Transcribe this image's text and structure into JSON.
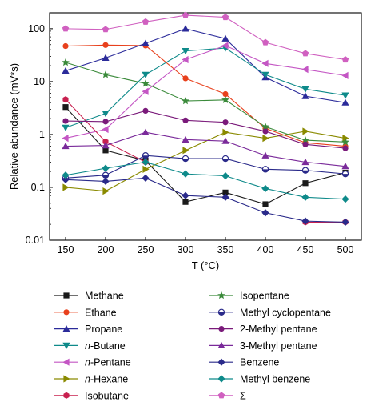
{
  "chart_data": {
    "type": "line",
    "title": "",
    "xlabel": "T (°C)",
    "ylabel": "Relative abundance (mV*s)",
    "x": [
      150,
      200,
      250,
      300,
      350,
      400,
      450,
      500
    ],
    "xlim": [
      130,
      520
    ],
    "ylim": [
      0.01,
      200
    ],
    "yscale": "log",
    "xticks": [
      "150",
      "200",
      "250",
      "300",
      "350",
      "400",
      "450",
      "500"
    ],
    "yticks": [
      "0.01",
      "0.1",
      "1",
      "10",
      "100"
    ],
    "ytick_values": [
      0.01,
      0.1,
      1,
      10,
      100
    ],
    "grid": false,
    "legend_position": "below",
    "series": [
      {
        "name": "Methane",
        "name_prefix": "",
        "name_italic": "",
        "name_suffix": "",
        "color": "#1a1a1a",
        "marker": "square",
        "values": [
          3.3,
          0.5,
          0.32,
          0.053,
          0.08,
          0.048,
          0.12,
          0.19
        ]
      },
      {
        "name": "Ethane",
        "name_prefix": "",
        "name_italic": "",
        "name_suffix": "",
        "color": "#e8401c",
        "marker": "circle",
        "values": [
          47,
          49,
          48,
          11.5,
          5.8,
          1.3,
          0.7,
          0.6
        ]
      },
      {
        "name": "Propane",
        "name_prefix": "",
        "name_italic": "",
        "name_suffix": "",
        "color": "#2b2b9a",
        "marker": "triangle-up",
        "values": [
          16,
          28,
          53,
          100,
          65,
          12,
          5.3,
          4
        ]
      },
      {
        "name": "n-Butane",
        "name_prefix": "",
        "name_italic": "n",
        "name_suffix": "-Butane",
        "color": "#0e8a8a",
        "marker": "triangle-down",
        "values": [
          1.35,
          2.5,
          13.5,
          38,
          43,
          13.5,
          7.2,
          5.5
        ]
      },
      {
        "name": "n-Pentane",
        "name_prefix": "",
        "name_italic": "n",
        "name_suffix": "-Pentane",
        "color": "#c456c4",
        "marker": "triangle-left",
        "values": [
          0.85,
          1.25,
          6.5,
          26,
          48,
          22,
          17,
          13
        ]
      },
      {
        "name": "n-Hexane",
        "name_prefix": "",
        "name_italic": "n",
        "name_suffix": "-Hexane",
        "color": "#8a8a00",
        "marker": "triangle-right",
        "values": [
          0.1,
          0.085,
          0.22,
          0.5,
          1.1,
          0.85,
          1.15,
          0.85
        ]
      },
      {
        "name": "Isobutane",
        "name_prefix": "",
        "name_italic": "",
        "name_suffix": "",
        "color": "#c8204f",
        "marker": "hexagon",
        "values": [
          4.6,
          0.73,
          0.3,
          null,
          null,
          null,
          0.022,
          0.022
        ]
      },
      {
        "name": "Isopentane",
        "name_prefix": "",
        "name_italic": "",
        "name_suffix": "",
        "color": "#3a8a3a",
        "marker": "star",
        "values": [
          23,
          13.5,
          9.2,
          4.3,
          4.5,
          1.4,
          0.78,
          0.72
        ]
      },
      {
        "name": "Methyl cyclopentane",
        "name_prefix": "",
        "name_italic": "",
        "name_suffix": "",
        "color": "#2a2a8a",
        "marker": "circle-half",
        "values": [
          0.15,
          0.17,
          0.4,
          0.35,
          0.35,
          0.22,
          0.21,
          0.18
        ]
      },
      {
        "name": "2-Methyl pentane",
        "name_prefix": "",
        "name_italic": "",
        "name_suffix": "",
        "color": "#7a1a7a",
        "marker": "circle",
        "values": [
          1.8,
          1.75,
          2.8,
          1.85,
          1.7,
          1.15,
          0.65,
          0.55
        ]
      },
      {
        "name": "3-Methyl pentane",
        "name_prefix": "",
        "name_italic": "",
        "name_suffix": "",
        "color": "#7a2a9a",
        "marker": "triangle-up",
        "values": [
          0.6,
          0.62,
          1.1,
          0.8,
          0.75,
          0.4,
          0.3,
          0.25
        ]
      },
      {
        "name": "Benzene",
        "name_prefix": "",
        "name_italic": "",
        "name_suffix": "",
        "color": "#2a2a8a",
        "marker": "diamond",
        "values": [
          0.14,
          0.13,
          0.15,
          0.07,
          0.065,
          0.033,
          0.023,
          0.022
        ]
      },
      {
        "name": "Methyl benzene",
        "name_prefix": "",
        "name_italic": "",
        "name_suffix": "",
        "color": "#0e8a8a",
        "marker": "diamond",
        "values": [
          0.17,
          0.23,
          0.3,
          0.18,
          0.165,
          0.095,
          0.065,
          0.06
        ]
      },
      {
        "name": "Σ",
        "name_prefix": "",
        "name_italic": "",
        "name_suffix": "",
        "color": "#d060c0",
        "marker": "pentagon",
        "values": [
          100,
          97,
          135,
          180,
          165,
          55,
          34,
          26
        ]
      }
    ]
  }
}
